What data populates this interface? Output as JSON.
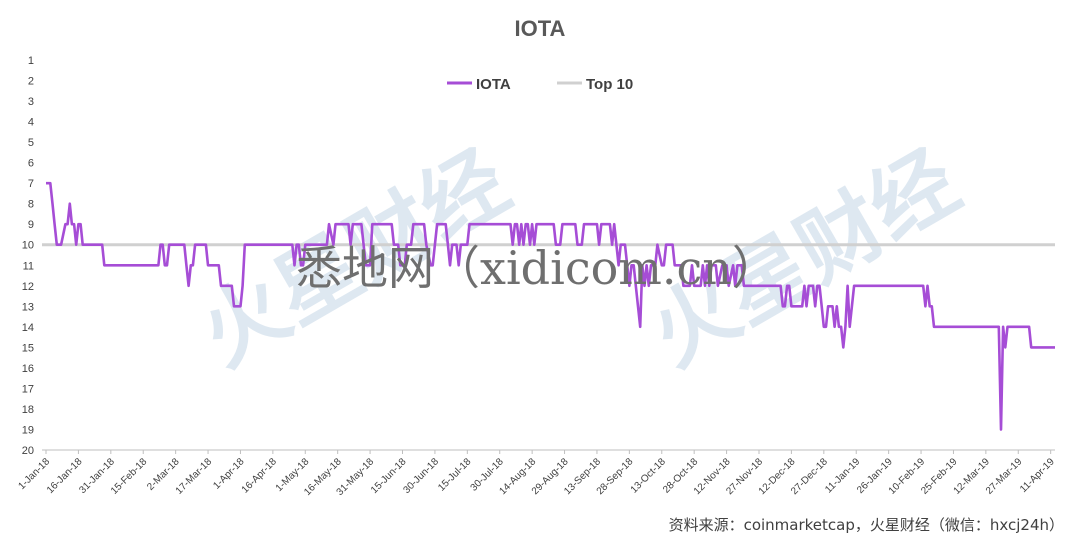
{
  "watermark": {
    "text": "悉地网（xidicom.cn）",
    "logo": "火星财经"
  },
  "source": "资料来源：coinmarketcap，火星财经（微信：hxcj24h）",
  "colors": {
    "series": "#a64dd6",
    "reference": "#d0d0d0",
    "axis": "#bfbfbf"
  },
  "chart_data": {
    "type": "line",
    "title": "IOTA",
    "xlabel": "",
    "ylabel": "",
    "y_reversed": true,
    "ylim": [
      1,
      20
    ],
    "yticks": [
      "1",
      "2",
      "3",
      "4",
      "5",
      "6",
      "7",
      "8",
      "9",
      "10",
      "11",
      "12",
      "13",
      "14",
      "15",
      "16",
      "17",
      "18",
      "19",
      "20"
    ],
    "grid": false,
    "legend_position": "top-center",
    "x_tick_labels": [
      "1-Jan-18",
      "16-Jan-18",
      "31-Jan-18",
      "15-Feb-18",
      "2-Mar-18",
      "17-Mar-18",
      "1-Apr-18",
      "16-Apr-18",
      "1-May-18",
      "16-May-18",
      "31-May-18",
      "15-Jun-18",
      "30-Jun-18",
      "15-Jul-18",
      "30-Jul-18",
      "14-Aug-18",
      "29-Aug-18",
      "13-Sep-18",
      "28-Sep-18",
      "13-Oct-18",
      "28-Oct-18",
      "12-Nov-18",
      "27-Nov-18",
      "12-Dec-18",
      "27-Dec-18",
      "11-Jan-19",
      "26-Jan-19",
      "10-Feb-19",
      "25-Feb-19",
      "12-Mar-19",
      "27-Mar-19",
      "11-Apr-19"
    ],
    "x_total_days": 467,
    "series": [
      {
        "name": "IOTA",
        "points": [
          [
            0,
            7
          ],
          [
            2,
            7
          ],
          [
            3,
            8
          ],
          [
            4,
            9
          ],
          [
            5,
            10
          ],
          [
            7,
            10
          ],
          [
            9,
            9
          ],
          [
            10,
            9
          ],
          [
            11,
            8
          ],
          [
            12,
            9
          ],
          [
            13,
            9
          ],
          [
            14,
            10
          ],
          [
            15,
            9
          ],
          [
            16,
            9
          ],
          [
            17,
            10
          ],
          [
            18,
            10
          ],
          [
            22,
            10
          ],
          [
            26,
            10
          ],
          [
            27,
            11
          ],
          [
            35,
            11
          ],
          [
            45,
            11
          ],
          [
            52,
            11
          ],
          [
            53,
            10
          ],
          [
            54,
            10
          ],
          [
            55,
            11
          ],
          [
            56,
            11
          ],
          [
            57,
            10
          ],
          [
            60,
            10
          ],
          [
            62,
            10
          ],
          [
            64,
            10
          ],
          [
            65,
            11
          ],
          [
            66,
            12
          ],
          [
            67,
            11
          ],
          [
            68,
            11
          ],
          [
            69,
            10
          ],
          [
            70,
            10
          ],
          [
            74,
            10
          ],
          [
            75,
            11
          ],
          [
            76,
            11
          ],
          [
            80,
            11
          ],
          [
            81,
            12
          ],
          [
            84,
            12
          ],
          [
            86,
            12
          ],
          [
            87,
            13
          ],
          [
            90,
            13
          ],
          [
            91,
            12
          ],
          [
            92,
            10
          ],
          [
            100,
            10
          ],
          [
            110,
            10
          ],
          [
            114,
            10
          ],
          [
            115,
            11
          ],
          [
            116,
            10
          ],
          [
            117,
            10
          ],
          [
            118,
            11
          ],
          [
            119,
            11
          ],
          [
            120,
            10
          ],
          [
            125,
            10
          ],
          [
            130,
            10
          ],
          [
            131,
            9
          ],
          [
            133,
            10
          ],
          [
            134,
            9
          ],
          [
            140,
            9
          ],
          [
            141,
            10
          ],
          [
            142,
            9
          ],
          [
            146,
            9
          ],
          [
            147,
            10
          ],
          [
            148,
            11
          ],
          [
            150,
            11
          ],
          [
            151,
            9
          ],
          [
            160,
            9
          ],
          [
            161,
            10
          ],
          [
            163,
            10
          ],
          [
            164,
            11
          ],
          [
            166,
            11
          ],
          [
            167,
            10
          ],
          [
            169,
            10
          ],
          [
            170,
            9
          ],
          [
            175,
            9
          ],
          [
            176,
            10
          ],
          [
            178,
            11
          ],
          [
            179,
            11
          ],
          [
            180,
            10
          ],
          [
            181,
            9
          ],
          [
            185,
            9
          ],
          [
            186,
            10
          ],
          [
            187,
            11
          ],
          [
            188,
            10
          ],
          [
            190,
            10
          ],
          [
            191,
            11
          ],
          [
            192,
            10
          ],
          [
            195,
            10
          ],
          [
            196,
            9
          ],
          [
            200,
            9
          ],
          [
            210,
            9
          ],
          [
            215,
            9
          ],
          [
            216,
            10
          ],
          [
            217,
            9
          ],
          [
            218,
            9
          ],
          [
            219,
            10
          ],
          [
            220,
            9
          ],
          [
            221,
            10
          ],
          [
            222,
            9
          ],
          [
            223,
            9
          ],
          [
            224,
            10
          ],
          [
            225,
            9
          ],
          [
            226,
            10
          ],
          [
            227,
            9
          ],
          [
            230,
            9
          ],
          [
            235,
            9
          ],
          [
            236,
            10
          ],
          [
            238,
            10
          ],
          [
            239,
            9
          ],
          [
            245,
            9
          ],
          [
            246,
            10
          ],
          [
            248,
            10
          ],
          [
            249,
            9
          ],
          [
            255,
            9
          ],
          [
            256,
            10
          ],
          [
            257,
            9
          ],
          [
            261,
            9
          ],
          [
            262,
            10
          ],
          [
            263,
            9
          ],
          [
            264,
            10
          ],
          [
            265,
            11
          ],
          [
            266,
            10
          ],
          [
            268,
            10
          ],
          [
            269,
            11
          ],
          [
            270,
            12
          ],
          [
            271,
            11
          ],
          [
            272,
            11
          ],
          [
            273,
            12
          ],
          [
            274,
            13
          ],
          [
            275,
            14
          ],
          [
            276,
            11
          ],
          [
            277,
            12
          ],
          [
            278,
            11
          ],
          [
            279,
            12
          ],
          [
            280,
            11
          ],
          [
            282,
            11
          ],
          [
            283,
            10
          ],
          [
            285,
            11
          ],
          [
            286,
            11
          ],
          [
            287,
            10
          ],
          [
            290,
            10
          ],
          [
            291,
            11
          ],
          [
            294,
            11
          ],
          [
            295,
            12
          ],
          [
            298,
            12
          ],
          [
            299,
            11
          ],
          [
            300,
            12
          ],
          [
            303,
            12
          ],
          [
            304,
            11
          ],
          [
            305,
            12
          ],
          [
            306,
            11
          ],
          [
            307,
            12
          ],
          [
            308,
            11
          ],
          [
            310,
            11
          ],
          [
            311,
            12
          ],
          [
            313,
            11
          ],
          [
            315,
            11
          ],
          [
            316,
            12
          ],
          [
            318,
            11
          ],
          [
            319,
            12
          ],
          [
            320,
            11
          ],
          [
            322,
            11
          ],
          [
            323,
            12
          ],
          [
            330,
            12
          ],
          [
            335,
            12
          ],
          [
            340,
            12
          ],
          [
            341,
            13
          ],
          [
            342,
            13
          ],
          [
            343,
            12
          ],
          [
            344,
            12
          ],
          [
            345,
            13
          ],
          [
            350,
            13
          ],
          [
            351,
            12
          ],
          [
            352,
            13
          ],
          [
            353,
            12
          ],
          [
            355,
            12
          ],
          [
            356,
            13
          ],
          [
            357,
            12
          ],
          [
            358,
            12
          ],
          [
            359,
            13
          ],
          [
            360,
            14
          ],
          [
            361,
            14
          ],
          [
            362,
            13
          ],
          [
            364,
            13
          ],
          [
            365,
            14
          ],
          [
            366,
            13
          ],
          [
            367,
            14
          ],
          [
            368,
            14
          ],
          [
            369,
            15
          ],
          [
            370,
            14
          ],
          [
            371,
            12
          ],
          [
            372,
            14
          ],
          [
            373,
            13
          ],
          [
            374,
            12
          ],
          [
            375,
            12
          ],
          [
            385,
            12
          ],
          [
            395,
            12
          ],
          [
            400,
            12
          ],
          [
            406,
            12
          ],
          [
            407,
            13
          ],
          [
            408,
            12
          ],
          [
            409,
            13
          ],
          [
            410,
            13
          ],
          [
            411,
            14
          ],
          [
            425,
            14
          ],
          [
            435,
            14
          ],
          [
            441,
            14
          ],
          [
            442,
            19
          ],
          [
            443,
            14
          ],
          [
            444,
            15
          ],
          [
            445,
            14
          ],
          [
            450,
            14
          ],
          [
            455,
            14
          ],
          [
            456,
            15
          ],
          [
            460,
            15
          ],
          [
            467,
            15
          ]
        ]
      },
      {
        "name": "Top 10",
        "points": [
          [
            0,
            10
          ],
          [
            467,
            10
          ]
        ]
      }
    ]
  }
}
